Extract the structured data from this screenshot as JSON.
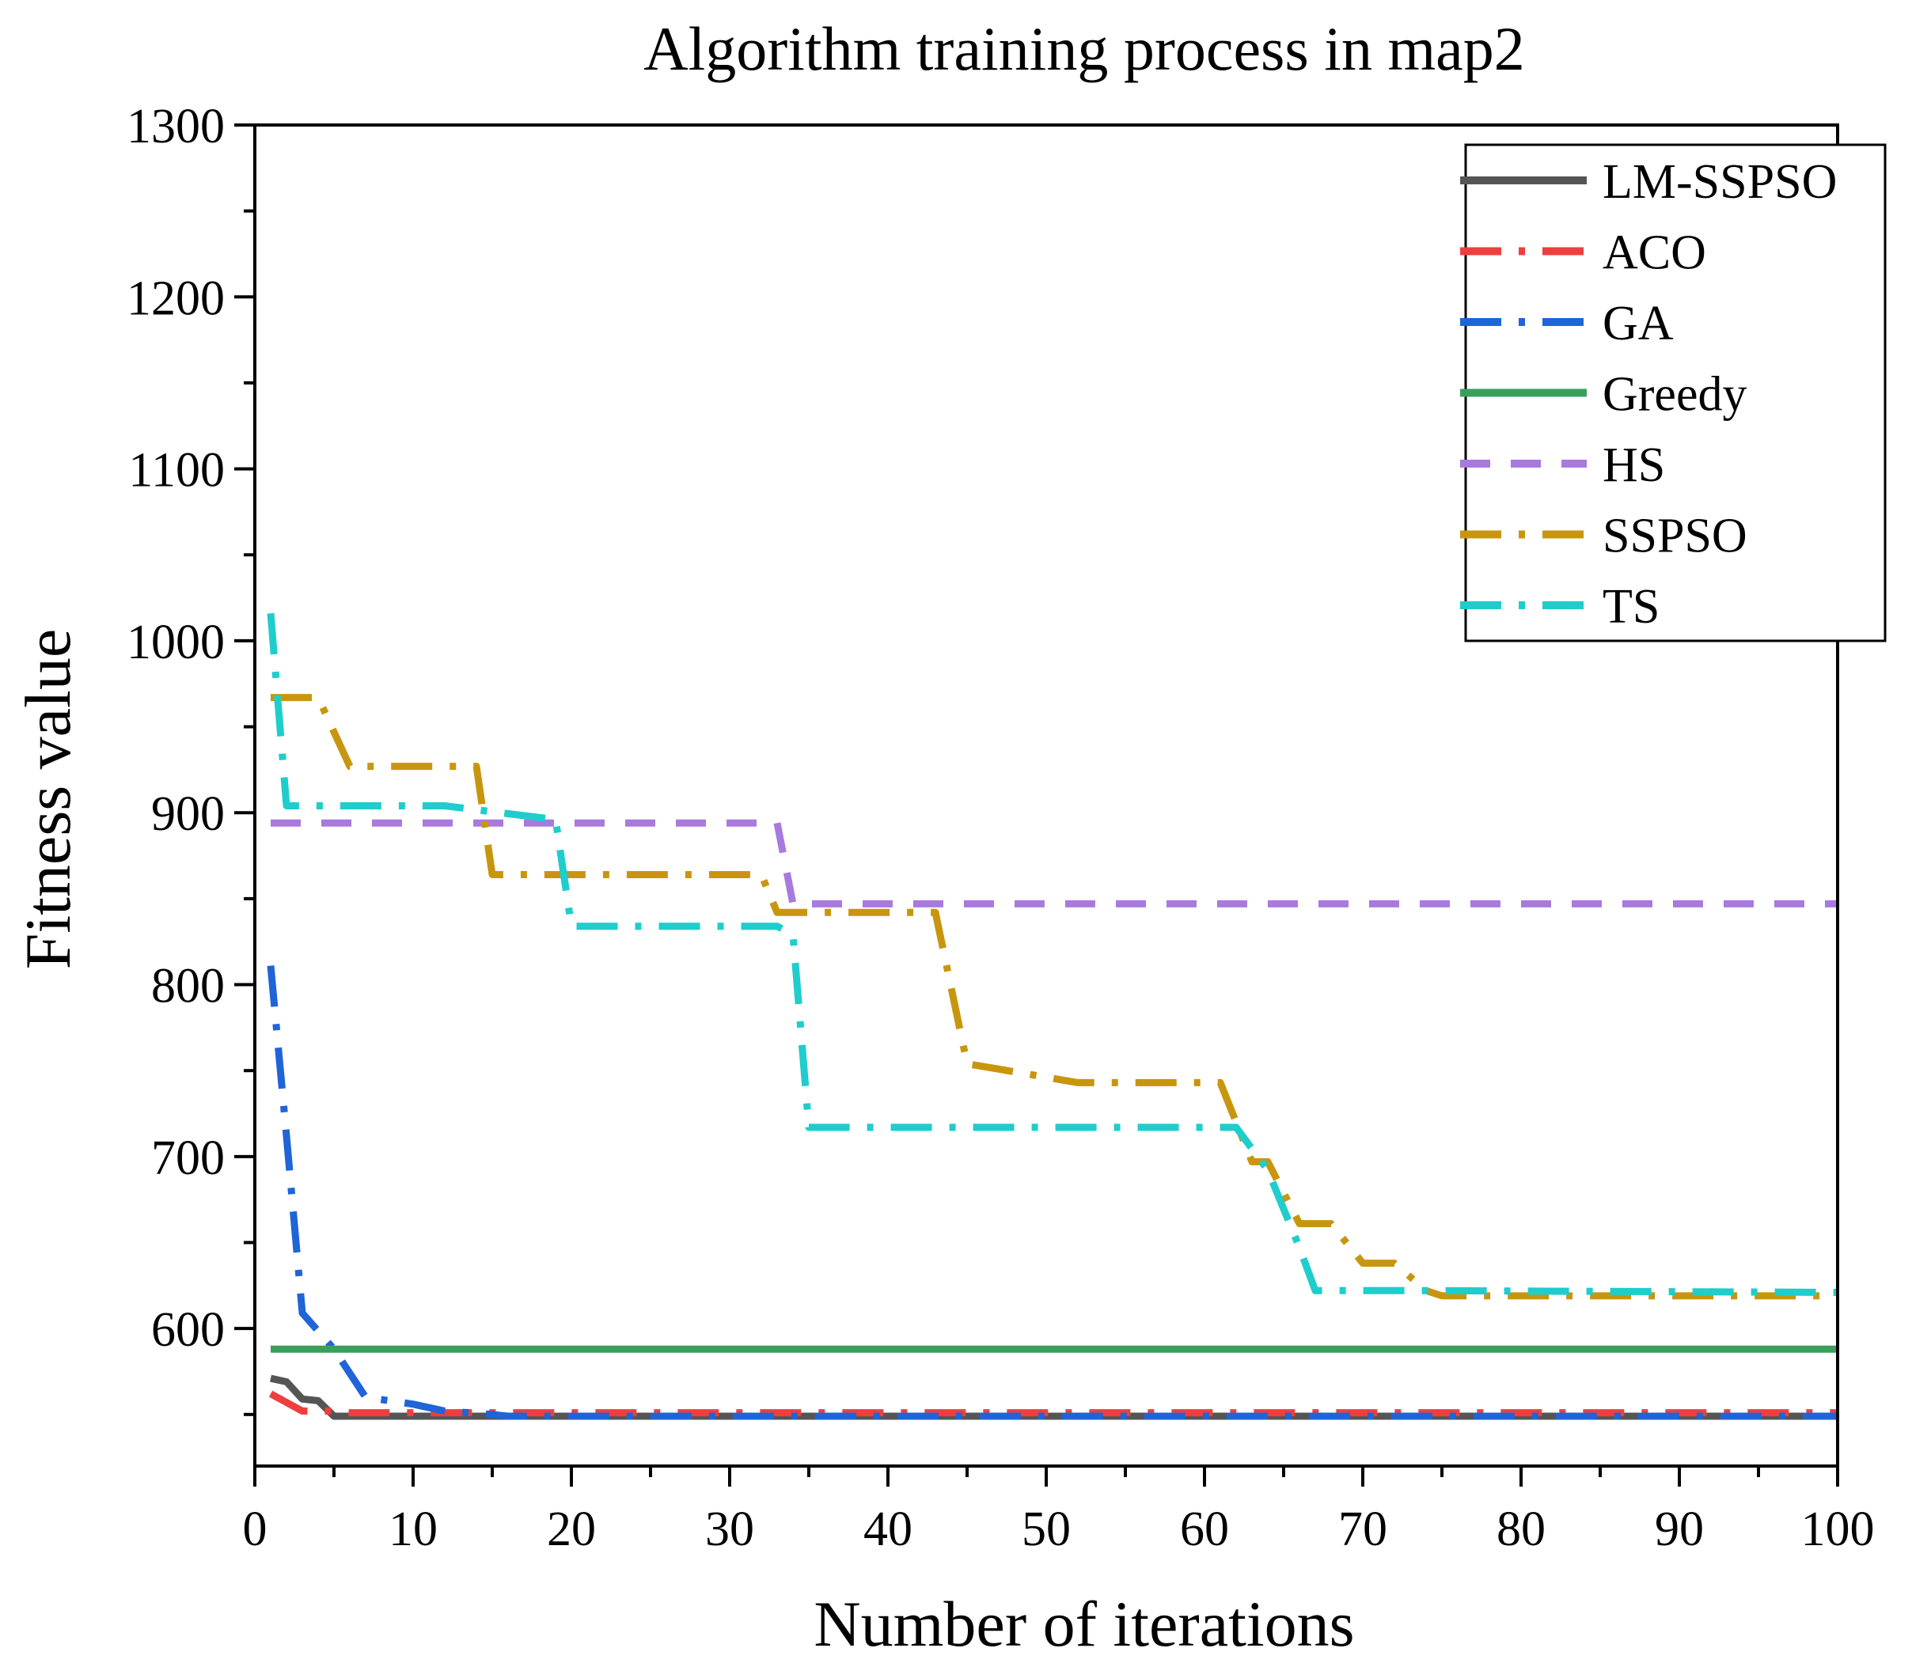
{
  "chart_data": {
    "type": "line",
    "title": "Algorithm training process in map2",
    "xlabel": "Number of iterations",
    "ylabel": "Fitness value",
    "xlim": [
      0,
      100
    ],
    "ylim": [
      520,
      1300
    ],
    "x_ticks": [
      0,
      10,
      20,
      30,
      40,
      50,
      60,
      70,
      80,
      90,
      100
    ],
    "x_tick_labels": [
      "0",
      "10",
      "20",
      "30",
      "40",
      "50",
      "60",
      "70",
      "80",
      "90",
      "100"
    ],
    "y_ticks": [
      600,
      700,
      800,
      900,
      1000,
      1100,
      1200,
      1300
    ],
    "y_tick_labels": [
      "600",
      "700",
      "800",
      "900",
      "1000",
      "1100",
      "1200",
      "1300"
    ],
    "grid": false,
    "legend_position": "top-right",
    "series": [
      {
        "name": "LM-SSPSO",
        "color": "#555555",
        "dash": "solid",
        "points": [
          [
            1,
            571
          ],
          [
            2,
            569
          ],
          [
            3,
            559
          ],
          [
            4,
            558
          ],
          [
            5,
            549
          ],
          [
            100,
            549
          ]
        ]
      },
      {
        "name": "ACO",
        "color": "#ee3e3e",
        "dash": "dashdot",
        "points": [
          [
            1,
            562
          ],
          [
            2,
            557
          ],
          [
            3,
            552
          ],
          [
            5,
            552
          ],
          [
            6,
            551
          ],
          [
            100,
            551
          ]
        ]
      },
      {
        "name": "GA",
        "color": "#1f64d8",
        "dash": "dashdot",
        "points": [
          [
            1,
            811
          ],
          [
            2,
            712
          ],
          [
            3,
            609
          ],
          [
            5,
            588
          ],
          [
            7,
            560
          ],
          [
            10,
            556
          ],
          [
            12,
            552
          ],
          [
            15,
            550
          ],
          [
            16,
            549
          ],
          [
            100,
            549
          ]
        ]
      },
      {
        "name": "Greedy",
        "color": "#3a9f5a",
        "dash": "solid",
        "points": [
          [
            1,
            588
          ],
          [
            100,
            588
          ]
        ]
      },
      {
        "name": "HS",
        "color": "#a879de",
        "dash": "dash",
        "points": [
          [
            1,
            894
          ],
          [
            33,
            894
          ],
          [
            34,
            847
          ],
          [
            100,
            847
          ]
        ]
      },
      {
        "name": "SSPSO",
        "color": "#c8960e",
        "dash": "dashdot",
        "points": [
          [
            1,
            967
          ],
          [
            4,
            967
          ],
          [
            6,
            927
          ],
          [
            14,
            927
          ],
          [
            15,
            864
          ],
          [
            32,
            864
          ],
          [
            33,
            842
          ],
          [
            43,
            842
          ],
          [
            45,
            754
          ],
          [
            52,
            743
          ],
          [
            61,
            743
          ],
          [
            63,
            697
          ],
          [
            64,
            697
          ],
          [
            66,
            661
          ],
          [
            68,
            661
          ],
          [
            70,
            638
          ],
          [
            72,
            638
          ],
          [
            74,
            622
          ],
          [
            75,
            619
          ],
          [
            100,
            619
          ]
        ]
      },
      {
        "name": "TS",
        "color": "#1fcdcc",
        "dash": "dashdot",
        "points": [
          [
            1,
            1016
          ],
          [
            2,
            904
          ],
          [
            12,
            904
          ],
          [
            19,
            896
          ],
          [
            20,
            834
          ],
          [
            33,
            834
          ],
          [
            34,
            829
          ],
          [
            35,
            717
          ],
          [
            62,
            717
          ],
          [
            64,
            692
          ],
          [
            66,
            647
          ],
          [
            67,
            622
          ],
          [
            74,
            622
          ],
          [
            100,
            621
          ]
        ]
      }
    ]
  }
}
